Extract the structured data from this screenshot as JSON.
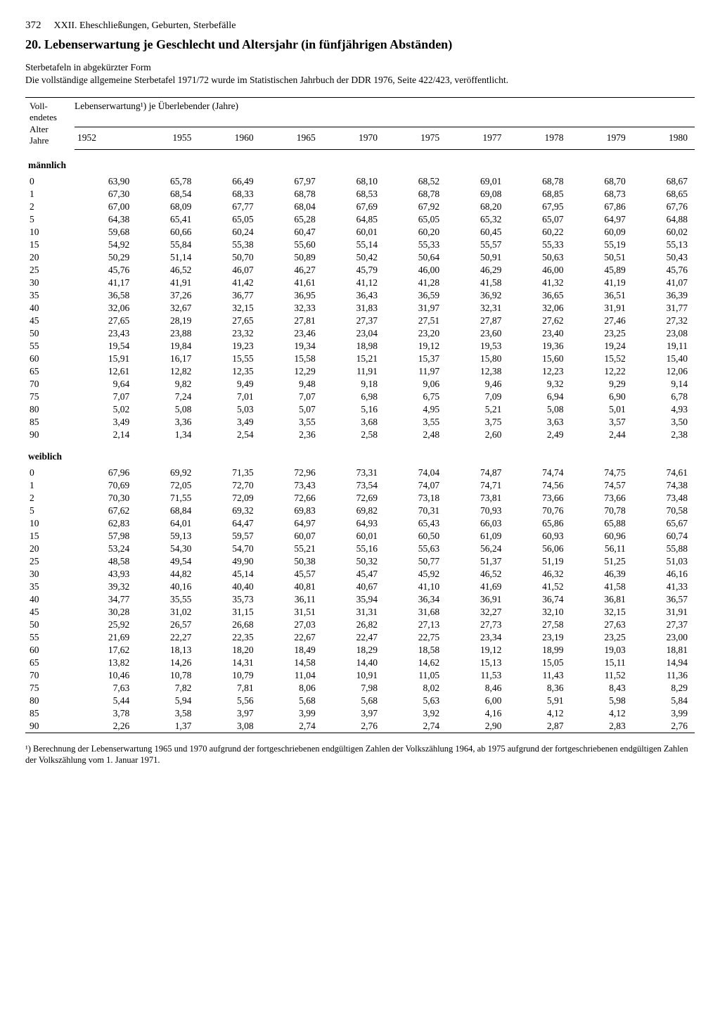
{
  "page_number": "372",
  "chapter": "XXII. Eheschließungen, Geburten, Sterbefälle",
  "title": "20. Lebenserwartung je Geschlecht und Altersjahr (in fünfjährigen Abständen)",
  "subtitle": "Sterbetafeln in abgekürzter Form",
  "note": "Die vollständige allgemeine Sterbetafel 1971/72 wurde im Statistischen Jahrbuch der DDR 1976, Seite 422/423, veröffentlicht.",
  "col_header_left_1": "Voll-",
  "col_header_left_2": "endetes",
  "col_header_left_3": "Alter",
  "col_header_left_4": "Jahre",
  "col_header_span": "Lebenserwartung¹) je Überlebender (Jahre)",
  "years": [
    "1952",
    "1955",
    "1960",
    "1965",
    "1970",
    "1975",
    "1977",
    "1978",
    "1979",
    "1980"
  ],
  "section_male": "männlich",
  "section_female": "weiblich",
  "ages": [
    "0",
    "1",
    "2",
    "5",
    "10",
    "15",
    "20",
    "25",
    "30",
    "35",
    "40",
    "45",
    "50",
    "55",
    "60",
    "65",
    "70",
    "75",
    "80",
    "85",
    "90"
  ],
  "male": [
    [
      "63,90",
      "65,78",
      "66,49",
      "67,97",
      "68,10",
      "68,52",
      "69,01",
      "68,78",
      "68,70",
      "68,67"
    ],
    [
      "67,30",
      "68,54",
      "68,33",
      "68,78",
      "68,53",
      "68,78",
      "69,08",
      "68,85",
      "68,73",
      "68,65"
    ],
    [
      "67,00",
      "68,09",
      "67,77",
      "68,04",
      "67,69",
      "67,92",
      "68,20",
      "67,95",
      "67,86",
      "67,76"
    ],
    [
      "64,38",
      "65,41",
      "65,05",
      "65,28",
      "64,85",
      "65,05",
      "65,32",
      "65,07",
      "64,97",
      "64,88"
    ],
    [
      "59,68",
      "60,66",
      "60,24",
      "60,47",
      "60,01",
      "60,20",
      "60,45",
      "60,22",
      "60,09",
      "60,02"
    ],
    [
      "54,92",
      "55,84",
      "55,38",
      "55,60",
      "55,14",
      "55,33",
      "55,57",
      "55,33",
      "55,19",
      "55,13"
    ],
    [
      "50,29",
      "51,14",
      "50,70",
      "50,89",
      "50,42",
      "50,64",
      "50,91",
      "50,63",
      "50,51",
      "50,43"
    ],
    [
      "45,76",
      "46,52",
      "46,07",
      "46,27",
      "45,79",
      "46,00",
      "46,29",
      "46,00",
      "45,89",
      "45,76"
    ],
    [
      "41,17",
      "41,91",
      "41,42",
      "41,61",
      "41,12",
      "41,28",
      "41,58",
      "41,32",
      "41,19",
      "41,07"
    ],
    [
      "36,58",
      "37,26",
      "36,77",
      "36,95",
      "36,43",
      "36,59",
      "36,92",
      "36,65",
      "36,51",
      "36,39"
    ],
    [
      "32,06",
      "32,67",
      "32,15",
      "32,33",
      "31,83",
      "31,97",
      "32,31",
      "32,06",
      "31,91",
      "31,77"
    ],
    [
      "27,65",
      "28,19",
      "27,65",
      "27,81",
      "27,37",
      "27,51",
      "27,87",
      "27,62",
      "27,46",
      "27,32"
    ],
    [
      "23,43",
      "23,88",
      "23,32",
      "23,46",
      "23,04",
      "23,20",
      "23,60",
      "23,40",
      "23,25",
      "23,08"
    ],
    [
      "19,54",
      "19,84",
      "19,23",
      "19,34",
      "18,98",
      "19,12",
      "19,53",
      "19,36",
      "19,24",
      "19,11"
    ],
    [
      "15,91",
      "16,17",
      "15,55",
      "15,58",
      "15,21",
      "15,37",
      "15,80",
      "15,60",
      "15,52",
      "15,40"
    ],
    [
      "12,61",
      "12,82",
      "12,35",
      "12,29",
      "11,91",
      "11,97",
      "12,38",
      "12,23",
      "12,22",
      "12,06"
    ],
    [
      "9,64",
      "9,82",
      "9,49",
      "9,48",
      "9,18",
      "9,06",
      "9,46",
      "9,32",
      "9,29",
      "9,14"
    ],
    [
      "7,07",
      "7,24",
      "7,01",
      "7,07",
      "6,98",
      "6,75",
      "7,09",
      "6,94",
      "6,90",
      "6,78"
    ],
    [
      "5,02",
      "5,08",
      "5,03",
      "5,07",
      "5,16",
      "4,95",
      "5,21",
      "5,08",
      "5,01",
      "4,93"
    ],
    [
      "3,49",
      "3,36",
      "3,49",
      "3,55",
      "3,68",
      "3,55",
      "3,75",
      "3,63",
      "3,57",
      "3,50"
    ],
    [
      "2,14",
      "1,34",
      "2,54",
      "2,36",
      "2,58",
      "2,48",
      "2,60",
      "2,49",
      "2,44",
      "2,38"
    ]
  ],
  "female": [
    [
      "67,96",
      "69,92",
      "71,35",
      "72,96",
      "73,31",
      "74,04",
      "74,87",
      "74,74",
      "74,75",
      "74,61"
    ],
    [
      "70,69",
      "72,05",
      "72,70",
      "73,43",
      "73,54",
      "74,07",
      "74,71",
      "74,56",
      "74,57",
      "74,38"
    ],
    [
      "70,30",
      "71,55",
      "72,09",
      "72,66",
      "72,69",
      "73,18",
      "73,81",
      "73,66",
      "73,66",
      "73,48"
    ],
    [
      "67,62",
      "68,84",
      "69,32",
      "69,83",
      "69,82",
      "70,31",
      "70,93",
      "70,76",
      "70,78",
      "70,58"
    ],
    [
      "62,83",
      "64,01",
      "64,47",
      "64,97",
      "64,93",
      "65,43",
      "66,03",
      "65,86",
      "65,88",
      "65,67"
    ],
    [
      "57,98",
      "59,13",
      "59,57",
      "60,07",
      "60,01",
      "60,50",
      "61,09",
      "60,93",
      "60,96",
      "60,74"
    ],
    [
      "53,24",
      "54,30",
      "54,70",
      "55,21",
      "55,16",
      "55,63",
      "56,24",
      "56,06",
      "56,11",
      "55,88"
    ],
    [
      "48,58",
      "49,54",
      "49,90",
      "50,38",
      "50,32",
      "50,77",
      "51,37",
      "51,19",
      "51,25",
      "51,03"
    ],
    [
      "43,93",
      "44,82",
      "45,14",
      "45,57",
      "45,47",
      "45,92",
      "46,52",
      "46,32",
      "46,39",
      "46,16"
    ],
    [
      "39,32",
      "40,16",
      "40,40",
      "40,81",
      "40,67",
      "41,10",
      "41,69",
      "41,52",
      "41,58",
      "41,33"
    ],
    [
      "34,77",
      "35,55",
      "35,73",
      "36,11",
      "35,94",
      "36,34",
      "36,91",
      "36,74",
      "36,81",
      "36,57"
    ],
    [
      "30,28",
      "31,02",
      "31,15",
      "31,51",
      "31,31",
      "31,68",
      "32,27",
      "32,10",
      "32,15",
      "31,91"
    ],
    [
      "25,92",
      "26,57",
      "26,68",
      "27,03",
      "26,82",
      "27,13",
      "27,73",
      "27,58",
      "27,63",
      "27,37"
    ],
    [
      "21,69",
      "22,27",
      "22,35",
      "22,67",
      "22,47",
      "22,75",
      "23,34",
      "23,19",
      "23,25",
      "23,00"
    ],
    [
      "17,62",
      "18,13",
      "18,20",
      "18,49",
      "18,29",
      "18,58",
      "19,12",
      "18,99",
      "19,03",
      "18,81"
    ],
    [
      "13,82",
      "14,26",
      "14,31",
      "14,58",
      "14,40",
      "14,62",
      "15,13",
      "15,05",
      "15,11",
      "14,94"
    ],
    [
      "10,46",
      "10,78",
      "10,79",
      "11,04",
      "10,91",
      "11,05",
      "11,53",
      "11,43",
      "11,52",
      "11,36"
    ],
    [
      "7,63",
      "7,82",
      "7,81",
      "8,06",
      "7,98",
      "8,02",
      "8,46",
      "8,36",
      "8,43",
      "8,29"
    ],
    [
      "5,44",
      "5,94",
      "5,56",
      "5,68",
      "5,68",
      "5,63",
      "6,00",
      "5,91",
      "5,98",
      "5,84"
    ],
    [
      "3,78",
      "3,58",
      "3,97",
      "3,99",
      "3,97",
      "3,92",
      "4,16",
      "4,12",
      "4,12",
      "3,99"
    ],
    [
      "2,26",
      "1,37",
      "3,08",
      "2,74",
      "2,76",
      "2,74",
      "2,90",
      "2,87",
      "2,83",
      "2,76"
    ]
  ],
  "footnote": "¹) Berechnung der Lebenserwartung 1965 und 1970 aufgrund der fortgeschriebenen endgültigen Zahlen der Volkszählung 1964, ab 1975 aufgrund der fortgeschriebenen endgültigen Zahlen der Volkszählung vom 1. Januar 1971."
}
